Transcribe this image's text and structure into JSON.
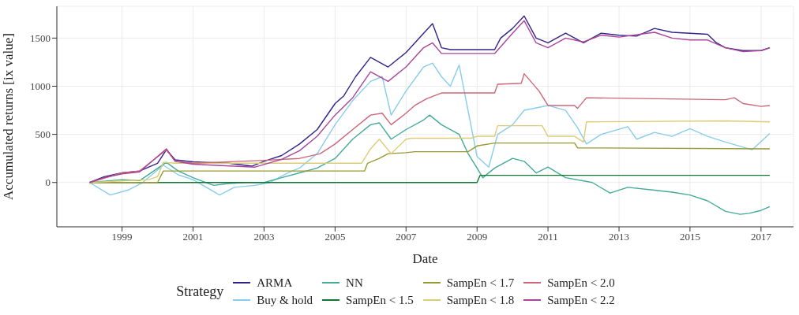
{
  "chart_data": {
    "type": "line",
    "xlabel": "Date",
    "ylabel": "Accumulated returns [ix value]",
    "legend_title": "Strategy",
    "legend": "bottom",
    "grid": true,
    "xlim": [
      "1997-03",
      "2017-12"
    ],
    "xticks": [
      "1999",
      "2001",
      "2003",
      "2005",
      "2007",
      "2009",
      "2011",
      "2013",
      "2015",
      "2017"
    ],
    "ylim": [
      -460,
      1830
    ],
    "yticks": [
      0,
      500,
      1000,
      1500
    ],
    "series": [
      {
        "name": "ARMA",
        "color": "#332288",
        "x": [
          "1998-02",
          "1998-07",
          "1999-01",
          "1999-07",
          "2000-01",
          "2000-04",
          "2000-07",
          "2001-01",
          "2002-01",
          "2002-09",
          "2003-01",
          "2003-07",
          "2004-01",
          "2004-07",
          "2005-01",
          "2005-04",
          "2005-08",
          "2006-01",
          "2006-07",
          "2007-01",
          "2007-07",
          "2007-10",
          "2008-01",
          "2008-04",
          "2009-07",
          "2009-09",
          "2010-01",
          "2010-05",
          "2010-09",
          "2011-01",
          "2011-07",
          "2012-01",
          "2012-07",
          "2013-01",
          "2013-07",
          "2014-01",
          "2014-07",
          "2015-01",
          "2015-07",
          "2015-10",
          "2016-01",
          "2016-07",
          "2017-01",
          "2017-04"
        ],
        "values": [
          0,
          60,
          100,
          120,
          200,
          340,
          235,
          215,
          200,
          170,
          220,
          280,
          400,
          550,
          820,
          900,
          1100,
          1300,
          1200,
          1350,
          1550,
          1650,
          1400,
          1380,
          1380,
          1500,
          1600,
          1730,
          1500,
          1450,
          1550,
          1450,
          1550,
          1530,
          1520,
          1600,
          1560,
          1550,
          1540,
          1450,
          1400,
          1370,
          1370,
          1400
        ]
      },
      {
        "name": "Buy & hold",
        "color": "#88ccee",
        "x": [
          "1998-02",
          "1998-09",
          "1999-03",
          "1999-08",
          "2000-03",
          "2000-08",
          "2001-01",
          "2001-10",
          "2002-03",
          "2002-10",
          "2003-03",
          "2003-09",
          "2004-01",
          "2004-07",
          "2005-01",
          "2005-07",
          "2006-01",
          "2006-05",
          "2006-08",
          "2007-01",
          "2007-07",
          "2007-10",
          "2008-01",
          "2008-04",
          "2008-07",
          "2009-01",
          "2009-05",
          "2009-08",
          "2010-01",
          "2010-05",
          "2011-01",
          "2011-07",
          "2011-11",
          "2012-02",
          "2012-07",
          "2013-04",
          "2013-07",
          "2014-01",
          "2014-07",
          "2015-01",
          "2015-07",
          "2016-01",
          "2016-10",
          "2017-04"
        ],
        "values": [
          0,
          -130,
          -80,
          0,
          180,
          80,
          30,
          -130,
          -50,
          -30,
          0,
          100,
          150,
          300,
          600,
          850,
          1050,
          1100,
          700,
          950,
          1200,
          1240,
          1100,
          1000,
          1220,
          270,
          160,
          500,
          600,
          750,
          800,
          750,
          570,
          400,
          500,
          580,
          450,
          520,
          480,
          560,
          480,
          420,
          340,
          510
        ]
      },
      {
        "name": "NN",
        "color": "#44aa99",
        "x": [
          "1998-02",
          "1999-01",
          "1999-07",
          "2000-04",
          "2000-08",
          "2001-01",
          "2001-08",
          "2002-01",
          "2002-07",
          "2003-01",
          "2003-07",
          "2004-01",
          "2004-07",
          "2005-01",
          "2005-07",
          "2006-01",
          "2006-04",
          "2006-08",
          "2007-01",
          "2007-07",
          "2007-09",
          "2008-01",
          "2008-07",
          "2008-10",
          "2009-01",
          "2009-03",
          "2009-07",
          "2010-01",
          "2010-05",
          "2010-09",
          "2011-01",
          "2011-07",
          "2012-04",
          "2012-10",
          "2013-04",
          "2014-01",
          "2014-07",
          "2015-01",
          "2015-07",
          "2016-01",
          "2016-06",
          "2016-09",
          "2017-01",
          "2017-04"
        ],
        "values": [
          0,
          30,
          20,
          210,
          120,
          50,
          -30,
          -10,
          0,
          0,
          50,
          100,
          150,
          250,
          450,
          600,
          620,
          450,
          550,
          650,
          700,
          600,
          500,
          300,
          150,
          50,
          150,
          250,
          220,
          100,
          160,
          50,
          0,
          -110,
          -50,
          -80,
          -100,
          -130,
          -190,
          -300,
          -330,
          -320,
          -290,
          -250
        ]
      },
      {
        "name": "SampEn < 1.5",
        "color": "#117733",
        "x": [
          "1998-02",
          "2009-01",
          "2009-02",
          "2017-04"
        ],
        "values": [
          0,
          0,
          75,
          75
        ]
      },
      {
        "name": "SampEn < 1.7",
        "color": "#999933",
        "x": [
          "1998-02",
          "2000-01",
          "2000-03",
          "2005-11",
          "2005-12",
          "2006-04",
          "2006-07",
          "2007-01",
          "2007-04",
          "2008-10",
          "2009-01",
          "2009-07",
          "2011-10",
          "2011-11",
          "2017-04"
        ],
        "values": [
          0,
          0,
          120,
          120,
          200,
          250,
          300,
          310,
          320,
          320,
          380,
          410,
          410,
          360,
          350
        ]
      },
      {
        "name": "SampEn < 1.8",
        "color": "#ddcc77",
        "x": [
          "1998-02",
          "1999-10",
          "2000-01",
          "2000-03",
          "2000-07",
          "2005-10",
          "2006-01",
          "2006-04",
          "2006-08",
          "2007-01",
          "2007-03",
          "2008-11",
          "2009-01",
          "2009-07",
          "2009-08",
          "2010-11",
          "2011-01",
          "2011-10",
          "2012-01",
          "2012-02",
          "2016-01",
          "2017-04"
        ],
        "values": [
          0,
          30,
          60,
          210,
          200,
          200,
          350,
          450,
          300,
          450,
          460,
          460,
          480,
          480,
          590,
          590,
          480,
          480,
          420,
          630,
          640,
          630
        ]
      },
      {
        "name": "SampEn < 2.0",
        "color": "#cc6677",
        "x": [
          "1998-02",
          "1999-01",
          "1999-07",
          "2000-04",
          "2000-07",
          "2001-01",
          "2003-01",
          "2004-01",
          "2004-08",
          "2005-01",
          "2005-07",
          "2006-01",
          "2006-05",
          "2006-08",
          "2007-01",
          "2007-04",
          "2007-08",
          "2008-01",
          "2009-07",
          "2009-08",
          "2010-04",
          "2010-05",
          "2010-10",
          "2011-01",
          "2011-10",
          "2011-11",
          "2012-02",
          "2016-01",
          "2016-04",
          "2016-07",
          "2017-01",
          "2017-04"
        ],
        "values": [
          0,
          100,
          120,
          340,
          220,
          200,
          230,
          250,
          300,
          400,
          550,
          700,
          720,
          600,
          720,
          800,
          870,
          930,
          930,
          1020,
          1030,
          1130,
          950,
          800,
          800,
          770,
          880,
          860,
          880,
          820,
          790,
          800
        ]
      },
      {
        "name": "SampEn < 2.2",
        "color": "#aa4499",
        "x": [
          "1998-02",
          "1998-07",
          "1999-01",
          "1999-07",
          "2000-04",
          "2000-07",
          "2001-01",
          "2002-10",
          "2003-07",
          "2004-01",
          "2004-07",
          "2005-01",
          "2005-07",
          "2006-01",
          "2006-07",
          "2007-01",
          "2007-07",
          "2007-10",
          "2008-01",
          "2009-07",
          "2010-01",
          "2010-05",
          "2010-09",
          "2011-01",
          "2011-07",
          "2012-01",
          "2012-07",
          "2013-01",
          "2014-01",
          "2014-07",
          "2015-01",
          "2015-07",
          "2016-01",
          "2016-07",
          "2017-01",
          "2017-04"
        ],
        "values": [
          0,
          50,
          90,
          110,
          350,
          220,
          190,
          160,
          240,
          330,
          480,
          700,
          880,
          1150,
          1050,
          1200,
          1400,
          1450,
          1340,
          1340,
          1550,
          1680,
          1450,
          1400,
          1500,
          1460,
          1530,
          1510,
          1560,
          1500,
          1480,
          1480,
          1400,
          1360,
          1370,
          1400
        ]
      }
    ]
  }
}
